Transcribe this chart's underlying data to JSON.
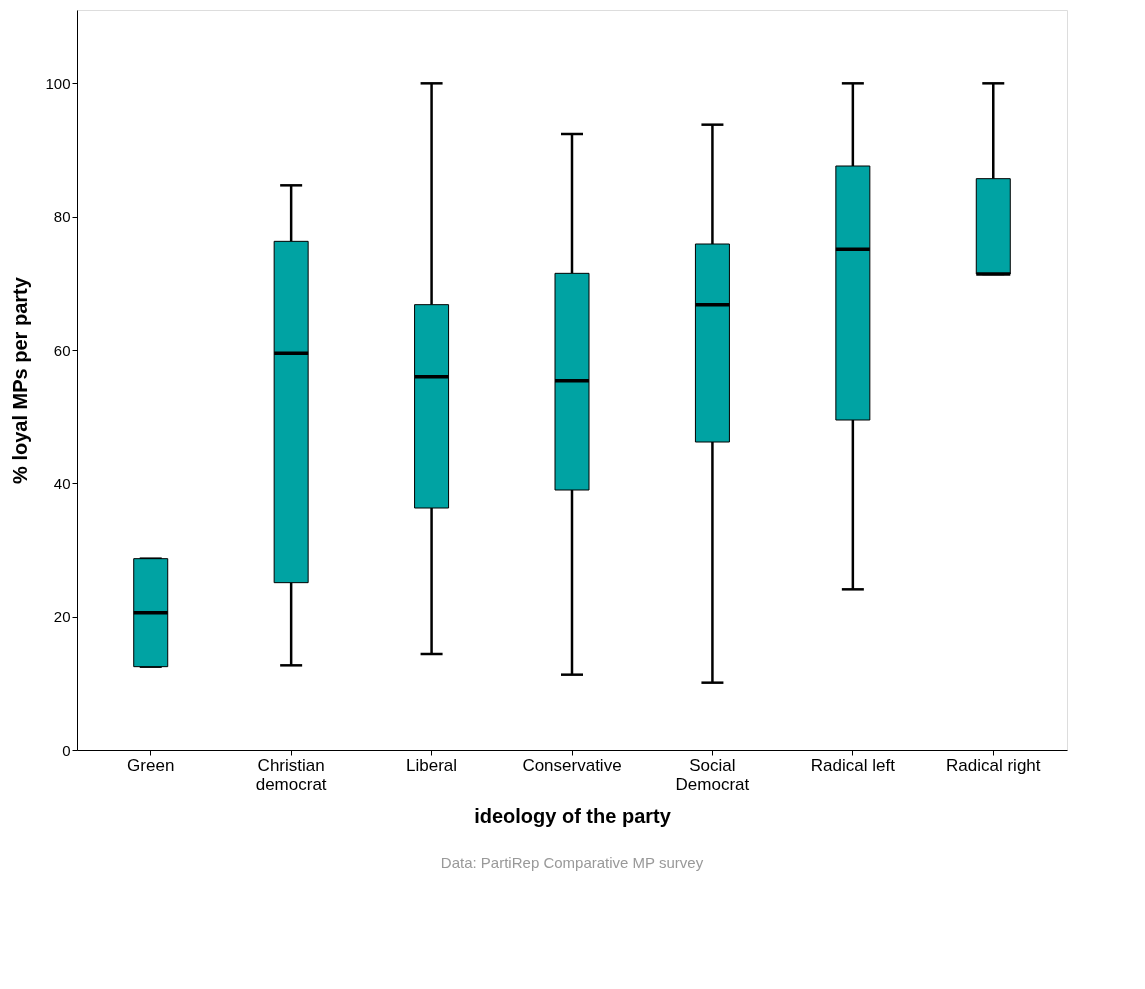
{
  "chart_data": {
    "type": "box",
    "xlabel": "ideology of the party",
    "ylabel": "% loyal MPs per party",
    "categories": [
      "Green",
      "Christian\ndemocrat",
      "Liberal",
      "Conservative",
      "Social\nDemocrat",
      "Radical left",
      "Radical right"
    ],
    "color": "#00a3a3",
    "boxes": [
      {
        "low": 12.5,
        "q1": 12.5,
        "median": 20.6,
        "q3": 28.7,
        "high": 28.7
      },
      {
        "low": 12.7,
        "q1": 25.1,
        "median": 59.5,
        "q3": 76.3,
        "high": 84.7
      },
      {
        "low": 14.4,
        "q1": 36.3,
        "median": 56.0,
        "q3": 66.8,
        "high": 100
      },
      {
        "low": 11.3,
        "q1": 39.0,
        "median": 55.4,
        "q3": 71.5,
        "high": 92.4
      },
      {
        "low": 10.1,
        "q1": 46.2,
        "median": 66.8,
        "q3": 75.9,
        "high": 93.8
      },
      {
        "low": 24.1,
        "q1": 49.5,
        "median": 75.1,
        "q3": 87.6,
        "high": 100
      },
      {
        "low": 71.4,
        "q1": 71.4,
        "median": 71.4,
        "q3": 85.7,
        "high": 100
      }
    ],
    "ylim": [
      0,
      111
    ],
    "yticks": [
      0,
      20,
      40,
      60,
      80,
      100
    ],
    "grid": false,
    "annotations": [
      "Data: PartiRep Comparative MP survey"
    ]
  }
}
